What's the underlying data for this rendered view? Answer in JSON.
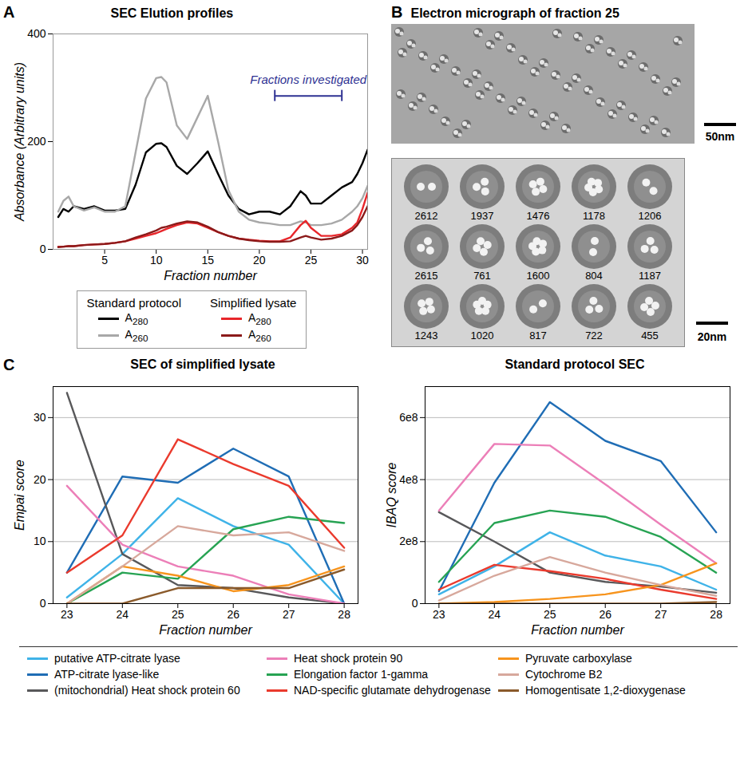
{
  "chart_data": [
    {
      "panel": "A",
      "type": "line",
      "title": "SEC Elution profiles",
      "x_label": "Fraction number",
      "y_label": "Absorbance (Arbitrary units)",
      "x": [
        0.5,
        1,
        1.5,
        2,
        3,
        4,
        5,
        6,
        7,
        8,
        9,
        10,
        10.5,
        11,
        12,
        13,
        14,
        15,
        16,
        17,
        18,
        19,
        20,
        21,
        22,
        23,
        24,
        24.5,
        25,
        26,
        27,
        28,
        29,
        29.5,
        30,
        30.5
      ],
      "series": [
        {
          "group": "Standard protocol",
          "name": "A280",
          "color": "#000000",
          "values": [
            60,
            75,
            70,
            80,
            75,
            80,
            72,
            72,
            75,
            120,
            180,
            196,
            197,
            190,
            155,
            140,
            160,
            182,
            140,
            100,
            75,
            65,
            70,
            70,
            65,
            80,
            108,
            100,
            85,
            85,
            100,
            115,
            125,
            140,
            160,
            185
          ]
        },
        {
          "group": "Standard protocol",
          "name": "A260",
          "color": "#a8a8a8",
          "values": [
            70,
            90,
            98,
            80,
            72,
            78,
            70,
            70,
            80,
            180,
            280,
            318,
            320,
            310,
            230,
            205,
            245,
            285,
            200,
            110,
            70,
            55,
            50,
            48,
            45,
            45,
            52,
            50,
            45,
            45,
            48,
            55,
            70,
            80,
            95,
            118
          ]
        },
        {
          "group": "Simplified lysate",
          "name": "A280",
          "color": "#e8262b",
          "values": [
            5,
            5,
            6,
            6,
            8,
            9,
            10,
            12,
            15,
            20,
            25,
            30,
            34,
            38,
            45,
            50,
            48,
            40,
            32,
            25,
            20,
            18,
            16,
            15,
            15,
            22,
            45,
            53,
            40,
            25,
            25,
            28,
            40,
            50,
            75,
            105
          ]
        },
        {
          "group": "Simplified lysate",
          "name": "A260",
          "color": "#8b1a1a",
          "values": [
            4,
            5,
            6,
            6,
            8,
            9,
            10,
            12,
            15,
            22,
            28,
            35,
            40,
            42,
            48,
            52,
            50,
            42,
            32,
            25,
            20,
            17,
            15,
            14,
            14,
            15,
            22,
            25,
            22,
            18,
            20,
            25,
            35,
            45,
            60,
            80
          ]
        }
      ],
      "xlim": [
        0,
        30.5
      ],
      "xticks": [
        5,
        10,
        15,
        20,
        25,
        30
      ],
      "ylim": [
        0,
        400
      ],
      "yticks": [
        0,
        200,
        400
      ],
      "annotation": {
        "text": "Fractions investigated",
        "x": [
          21.5,
          28
        ],
        "y": 285
      },
      "legend": "bottom"
    },
    {
      "panel": "C",
      "type": "line",
      "title": "SEC of simplified lysate",
      "x_label": "Fraction number",
      "y_label": "Empai score",
      "x": [
        23,
        24,
        25,
        26,
        27,
        28
      ],
      "series": [
        {
          "name": "putative ATP-citrate lyase",
          "color": "#3fb3e8",
          "values": [
            1,
            8,
            17,
            12.5,
            9.5,
            0
          ]
        },
        {
          "name": "ATP-citrate lyase-like",
          "color": "#1f6db5",
          "values": [
            5,
            20.5,
            19.5,
            25,
            20.5,
            0
          ]
        },
        {
          "name": "(mitochondrial) Heat shock protein 60",
          "color": "#58585a",
          "values": [
            34,
            8,
            3,
            2.5,
            1,
            0
          ]
        },
        {
          "name": "Heat shock protein 90",
          "color": "#ec7fb8",
          "values": [
            19,
            9.5,
            6,
            4.5,
            1.5,
            0
          ]
        },
        {
          "name": "Elongation factor 1-gamma",
          "color": "#27a353",
          "values": [
            0,
            5,
            4,
            12,
            14,
            13
          ]
        },
        {
          "name": "NAD-specific glutamate dehydrogenase",
          "color": "#ea3a2d",
          "values": [
            5,
            11,
            26.5,
            22.5,
            19,
            9
          ]
        },
        {
          "name": "Pyruvate carboxylase",
          "color": "#f7941d",
          "values": [
            0,
            6,
            4.5,
            2,
            3,
            6
          ]
        },
        {
          "name": "Cytochrome B2",
          "color": "#d7a89c",
          "values": [
            0,
            6,
            12.5,
            11,
            11.5,
            8.5
          ]
        },
        {
          "name": "Homogentisate 1,2-dioxygenase",
          "color": "#8a5a2b",
          "values": [
            0,
            0,
            2.5,
            2.5,
            2.5,
            5.5
          ]
        }
      ],
      "xlim": [
        22.75,
        28.25
      ],
      "xticks": [
        23,
        24,
        25,
        26,
        27,
        28
      ],
      "ylim": [
        0,
        35
      ],
      "yticks": [
        0,
        10,
        20,
        30
      ],
      "grid": true,
      "legend": "bottom"
    },
    {
      "type": "line",
      "title": "Standard protocol SEC",
      "x_label": "Fraction number",
      "y_label": "IBAQ score",
      "x": [
        23,
        24,
        25,
        26,
        27,
        28
      ],
      "series": [
        {
          "name": "putative ATP-citrate lyase",
          "color": "#3fb3e8",
          "values": [
            30000000,
            120000000,
            230000000,
            155000000,
            120000000,
            45000000
          ]
        },
        {
          "name": "ATP-citrate lyase-like",
          "color": "#1f6db5",
          "values": [
            40000000,
            390000000,
            650000000,
            525000000,
            460000000,
            230000000
          ]
        },
        {
          "name": "(mitochondrial) Heat shock protein 60",
          "color": "#58585a",
          "values": [
            295000000,
            200000000,
            100000000,
            70000000,
            55000000,
            35000000
          ]
        },
        {
          "name": "Heat shock protein 90",
          "color": "#ec7fb8",
          "values": [
            300000000,
            515000000,
            510000000,
            385000000,
            255000000,
            130000000
          ]
        },
        {
          "name": "Elongation factor 1-gamma",
          "color": "#27a353",
          "values": [
            70000000,
            260000000,
            300000000,
            280000000,
            215000000,
            100000000
          ]
        },
        {
          "name": "NAD-specific glutamate dehydrogenase",
          "color": "#ea3a2d",
          "values": [
            45000000,
            125000000,
            105000000,
            80000000,
            45000000,
            15000000
          ]
        },
        {
          "name": "Pyruvate carboxylase",
          "color": "#f7941d",
          "values": [
            0,
            5000000,
            15000000,
            30000000,
            60000000,
            130000000
          ]
        },
        {
          "name": "Cytochrome B2",
          "color": "#d7a89c",
          "values": [
            10000000,
            90000000,
            150000000,
            100000000,
            60000000,
            25000000
          ]
        },
        {
          "name": "Homogentisate 1,2-dioxygenase",
          "color": "#8a5a2b",
          "values": [
            0,
            0,
            0,
            0,
            0,
            5000000
          ]
        }
      ],
      "xlim": [
        22.75,
        28.25
      ],
      "xticks": [
        23,
        24,
        25,
        26,
        27,
        28
      ],
      "ylim": [
        0,
        700000000
      ],
      "yticks": [
        0,
        {
          "value": 200000000,
          "label": "2e8"
        },
        {
          "value": 400000000,
          "label": "4e8"
        },
        {
          "value": 600000000,
          "label": "6e8"
        }
      ],
      "grid": true,
      "legend": "bottom"
    }
  ],
  "micrograph": {
    "panel": "B",
    "title": "Electron micrograph of fraction 25",
    "scale_bar": "50nm",
    "class_averages": {
      "counts": [
        2612,
        1937,
        1476,
        1178,
        1206,
        2615,
        761,
        1600,
        804,
        1187,
        1243,
        1020,
        817,
        722,
        455
      ],
      "scale_bar": "20nm"
    }
  }
}
